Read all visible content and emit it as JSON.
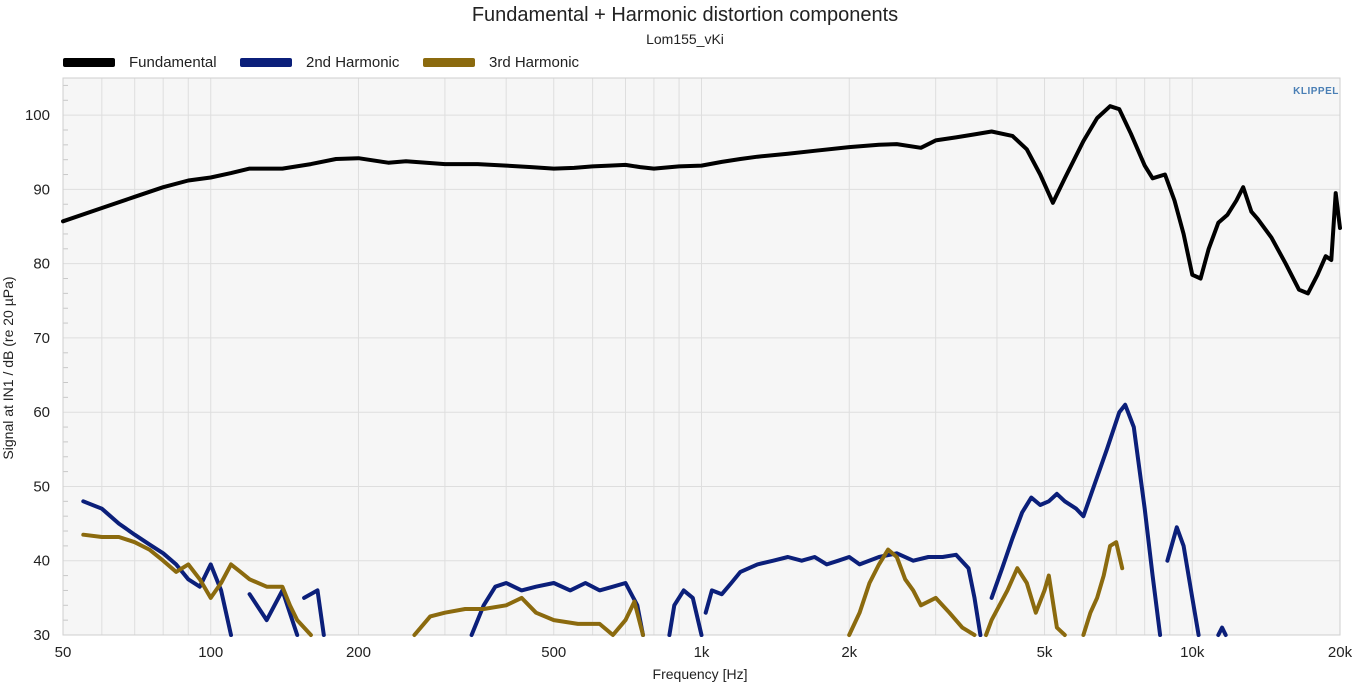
{
  "chart_data": {
    "type": "line",
    "title": "Fundamental + Harmonic distortion components",
    "subtitle": "Lom155_vKi",
    "xlabel": "Frequency [Hz]",
    "ylabel": "Signal at IN1 / dB (re 20 µPa)",
    "x_scale": "log",
    "xlim": [
      50,
      20000
    ],
    "ylim": [
      30,
      105
    ],
    "x_ticks": [
      {
        "value": 50,
        "label": "50"
      },
      {
        "value": 100,
        "label": "100"
      },
      {
        "value": 200,
        "label": "200"
      },
      {
        "value": 500,
        "label": "500"
      },
      {
        "value": 1000,
        "label": "1k"
      },
      {
        "value": 2000,
        "label": "2k"
      },
      {
        "value": 5000,
        "label": "5k"
      },
      {
        "value": 10000,
        "label": "10k"
      },
      {
        "value": 20000,
        "label": "20k"
      }
    ],
    "y_ticks": [
      {
        "value": 30,
        "label": "30"
      },
      {
        "value": 40,
        "label": "40"
      },
      {
        "value": 50,
        "label": "50"
      },
      {
        "value": 60,
        "label": "60"
      },
      {
        "value": 70,
        "label": "70"
      },
      {
        "value": 80,
        "label": "80"
      },
      {
        "value": 90,
        "label": "90"
      },
      {
        "value": 100,
        "label": "100"
      }
    ],
    "grid": true,
    "legend_position": "top-left",
    "watermark": "KLIPPEL",
    "series": [
      {
        "name": "Fundamental",
        "color": "#000000",
        "points": [
          [
            50,
            85.7
          ],
          [
            60,
            87.5
          ],
          [
            70,
            89
          ],
          [
            80,
            90.3
          ],
          [
            90,
            91.2
          ],
          [
            100,
            91.6
          ],
          [
            110,
            92.2
          ],
          [
            120,
            92.8
          ],
          [
            140,
            92.8
          ],
          [
            160,
            93.4
          ],
          [
            180,
            94.1
          ],
          [
            200,
            94.2
          ],
          [
            230,
            93.6
          ],
          [
            250,
            93.8
          ],
          [
            300,
            93.4
          ],
          [
            350,
            93.4
          ],
          [
            400,
            93.2
          ],
          [
            450,
            93.0
          ],
          [
            500,
            92.8
          ],
          [
            550,
            92.9
          ],
          [
            600,
            93.1
          ],
          [
            650,
            93.2
          ],
          [
            700,
            93.3
          ],
          [
            750,
            93.0
          ],
          [
            800,
            92.8
          ],
          [
            900,
            93.1
          ],
          [
            1000,
            93.2
          ],
          [
            1100,
            93.7
          ],
          [
            1200,
            94.1
          ],
          [
            1300,
            94.4
          ],
          [
            1500,
            94.8
          ],
          [
            1700,
            95.2
          ],
          [
            2000,
            95.7
          ],
          [
            2300,
            96.0
          ],
          [
            2500,
            96.1
          ],
          [
            2800,
            95.6
          ],
          [
            3000,
            96.6
          ],
          [
            3300,
            97.0
          ],
          [
            3600,
            97.4
          ],
          [
            3900,
            97.8
          ],
          [
            4300,
            97.2
          ],
          [
            4600,
            95.4
          ],
          [
            4900,
            92.0
          ],
          [
            5200,
            88.2
          ],
          [
            5500,
            91.5
          ],
          [
            6000,
            96.5
          ],
          [
            6400,
            99.6
          ],
          [
            6800,
            101.2
          ],
          [
            7100,
            100.8
          ],
          [
            7500,
            97.5
          ],
          [
            8000,
            93.2
          ],
          [
            8300,
            91.5
          ],
          [
            8800,
            92.0
          ],
          [
            9200,
            88.5
          ],
          [
            9600,
            84.0
          ],
          [
            10000,
            78.5
          ],
          [
            10400,
            78.0
          ],
          [
            10800,
            82.0
          ],
          [
            11300,
            85.5
          ],
          [
            11800,
            86.6
          ],
          [
            12300,
            88.5
          ],
          [
            12700,
            90.3
          ],
          [
            13200,
            87.0
          ],
          [
            13600,
            86.0
          ],
          [
            14500,
            83.5
          ],
          [
            15500,
            80.0
          ],
          [
            16500,
            76.5
          ],
          [
            17200,
            76.0
          ],
          [
            18000,
            78.5
          ],
          [
            18700,
            81.0
          ],
          [
            19200,
            80.5
          ],
          [
            19600,
            89.5
          ],
          [
            20000,
            84.8
          ]
        ]
      },
      {
        "name": "2nd Harmonic",
        "color": "#0b1f7a",
        "points": [
          [
            55,
            48
          ],
          [
            60,
            47
          ],
          [
            65,
            45
          ],
          [
            70,
            43.5
          ],
          [
            75,
            42.2
          ],
          [
            80,
            41
          ],
          [
            85,
            39.5
          ],
          [
            90,
            37.5
          ],
          [
            95,
            36.5
          ],
          [
            100,
            39.5
          ],
          [
            105,
            36
          ],
          [
            110,
            30
          ],
          [
            null,
            null
          ],
          [
            120,
            35.5
          ],
          [
            130,
            32
          ],
          [
            140,
            36
          ],
          [
            150,
            30
          ],
          [
            null,
            null
          ],
          [
            155,
            35
          ],
          [
            165,
            36
          ],
          [
            170,
            30
          ],
          [
            null,
            null
          ],
          [
            340,
            30
          ],
          [
            360,
            34
          ],
          [
            380,
            36.5
          ],
          [
            400,
            37
          ],
          [
            430,
            36
          ],
          [
            460,
            36.5
          ],
          [
            500,
            37
          ],
          [
            540,
            36
          ],
          [
            580,
            37
          ],
          [
            620,
            36
          ],
          [
            660,
            36.5
          ],
          [
            700,
            37
          ],
          [
            740,
            34
          ],
          [
            760,
            30
          ],
          [
            null,
            null
          ],
          [
            860,
            30
          ],
          [
            880,
            34
          ],
          [
            920,
            36
          ],
          [
            960,
            35
          ],
          [
            1000,
            30
          ],
          [
            null,
            null
          ],
          [
            1020,
            33
          ],
          [
            1050,
            36
          ],
          [
            1100,
            35.5
          ],
          [
            1150,
            37
          ],
          [
            1200,
            38.5
          ],
          [
            1300,
            39.5
          ],
          [
            1400,
            40
          ],
          [
            1500,
            40.5
          ],
          [
            1600,
            40
          ],
          [
            1700,
            40.5
          ],
          [
            1800,
            39.5
          ],
          [
            1900,
            40
          ],
          [
            2000,
            40.5
          ],
          [
            2100,
            39.5
          ],
          [
            2300,
            40.5
          ],
          [
            2500,
            41
          ],
          [
            2700,
            40
          ],
          [
            2900,
            40.5
          ],
          [
            3100,
            40.5
          ],
          [
            3300,
            40.8
          ],
          [
            3500,
            39
          ],
          [
            3600,
            35
          ],
          [
            3700,
            30
          ],
          [
            null,
            null
          ],
          [
            3900,
            35
          ],
          [
            4100,
            39
          ],
          [
            4300,
            43
          ],
          [
            4500,
            46.5
          ],
          [
            4700,
            48.5
          ],
          [
            4900,
            47.5
          ],
          [
            5100,
            48
          ],
          [
            5300,
            49
          ],
          [
            5500,
            48
          ],
          [
            5800,
            47
          ],
          [
            6000,
            46
          ],
          [
            6300,
            50
          ],
          [
            6700,
            55
          ],
          [
            7100,
            60
          ],
          [
            7300,
            61
          ],
          [
            7600,
            58
          ],
          [
            8000,
            47
          ],
          [
            8300,
            38
          ],
          [
            8600,
            30
          ],
          [
            null,
            null
          ],
          [
            8900,
            40
          ],
          [
            9300,
            44.5
          ],
          [
            9600,
            42
          ],
          [
            10000,
            35
          ],
          [
            10300,
            30
          ],
          [
            null,
            null
          ],
          [
            11300,
            30
          ],
          [
            11500,
            31
          ],
          [
            11700,
            30
          ]
        ]
      },
      {
        "name": "3rd Harmonic",
        "color": "#8b6a0e",
        "points": [
          [
            55,
            43.5
          ],
          [
            60,
            43.2
          ],
          [
            65,
            43.2
          ],
          [
            70,
            42.5
          ],
          [
            75,
            41.5
          ],
          [
            80,
            40
          ],
          [
            85,
            38.5
          ],
          [
            90,
            39.5
          ],
          [
            95,
            37.5
          ],
          [
            100,
            35
          ],
          [
            105,
            37
          ],
          [
            110,
            39.5
          ],
          [
            115,
            38.5
          ],
          [
            120,
            37.5
          ],
          [
            130,
            36.5
          ],
          [
            140,
            36.5
          ],
          [
            145,
            34
          ],
          [
            150,
            32
          ],
          [
            160,
            30
          ],
          [
            null,
            null
          ],
          [
            260,
            30
          ],
          [
            280,
            32.5
          ],
          [
            300,
            33
          ],
          [
            330,
            33.5
          ],
          [
            360,
            33.5
          ],
          [
            400,
            34
          ],
          [
            430,
            35
          ],
          [
            460,
            33
          ],
          [
            500,
            32
          ],
          [
            560,
            31.5
          ],
          [
            620,
            31.5
          ],
          [
            660,
            30
          ],
          [
            700,
            32
          ],
          [
            730,
            34.5
          ],
          [
            760,
            30
          ],
          [
            null,
            null
          ],
          [
            2000,
            30
          ],
          [
            2100,
            33
          ],
          [
            2200,
            37
          ],
          [
            2300,
            39.5
          ],
          [
            2400,
            41.5
          ],
          [
            2500,
            40.5
          ],
          [
            2600,
            37.5
          ],
          [
            2700,
            36
          ],
          [
            2800,
            34
          ],
          [
            3000,
            35
          ],
          [
            3200,
            33
          ],
          [
            3400,
            31
          ],
          [
            3600,
            30
          ],
          [
            null,
            null
          ],
          [
            3800,
            30
          ],
          [
            3900,
            32
          ],
          [
            4200,
            36
          ],
          [
            4400,
            39
          ],
          [
            4600,
            37
          ],
          [
            4800,
            33
          ],
          [
            5000,
            36
          ],
          [
            5100,
            38
          ],
          [
            5300,
            31
          ],
          [
            5500,
            30
          ],
          [
            null,
            null
          ],
          [
            6000,
            30
          ],
          [
            6200,
            33
          ],
          [
            6400,
            35
          ],
          [
            6600,
            38
          ],
          [
            6800,
            42
          ],
          [
            7000,
            42.5
          ],
          [
            7200,
            39
          ]
        ]
      }
    ]
  }
}
